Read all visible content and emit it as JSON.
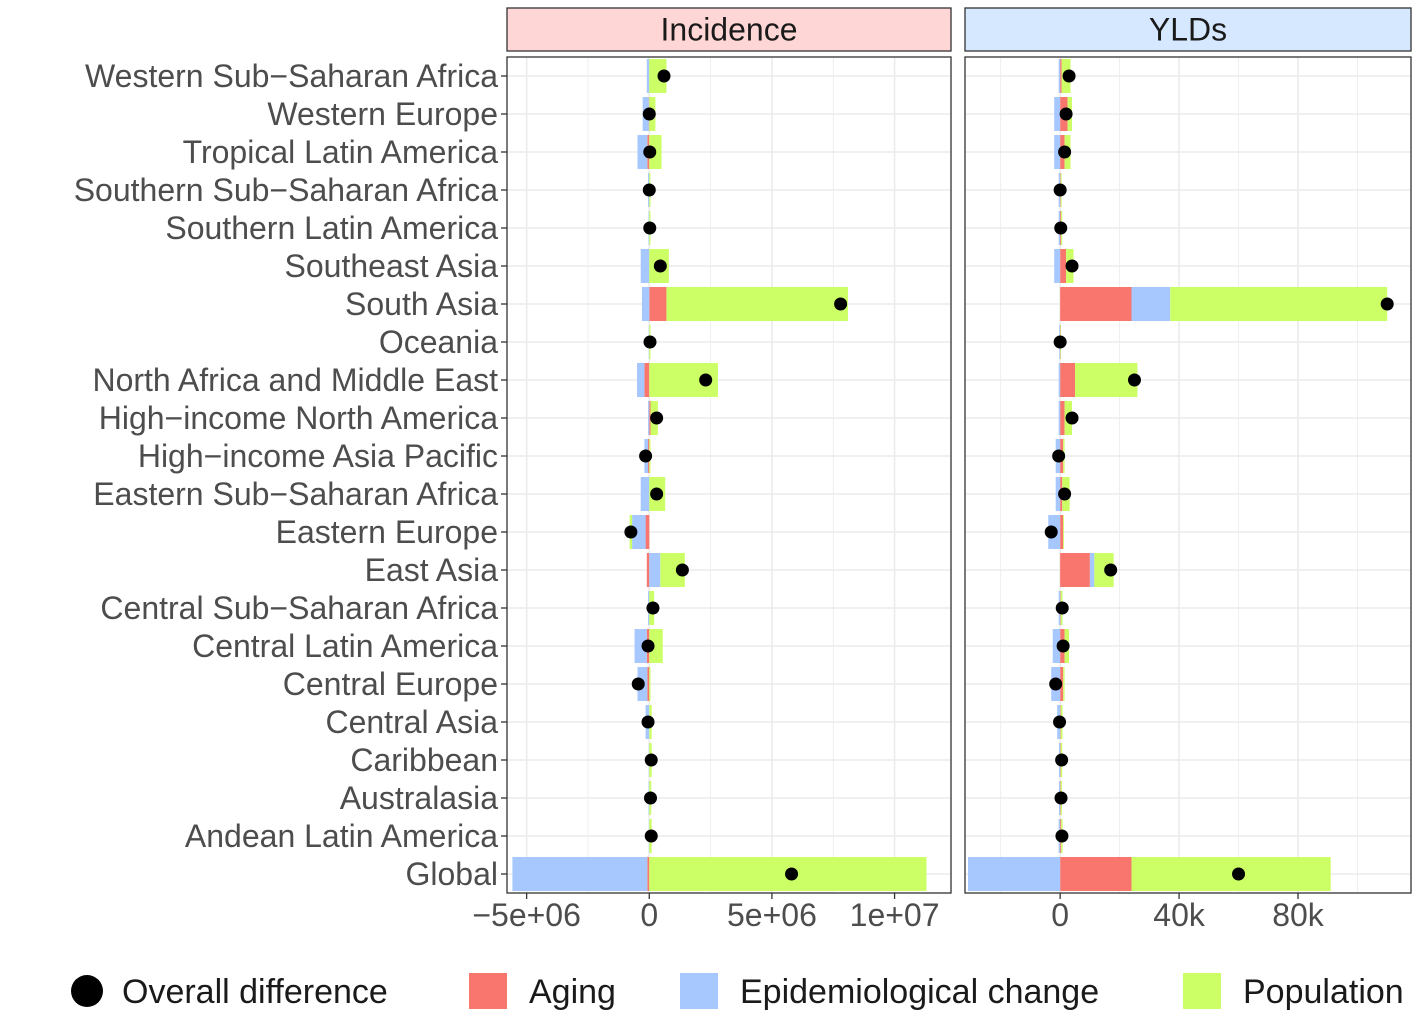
{
  "chart_data": {
    "type": "bar",
    "subtype": "stacked-horizontal-decomposition",
    "categories": [
      "Global",
      "Andean Latin America",
      "Australasia",
      "Caribbean",
      "Central Asia",
      "Central Europe",
      "Central Latin America",
      "Central Sub−Saharan Africa",
      "East Asia",
      "Eastern Europe",
      "Eastern Sub−Saharan Africa",
      "High−income Asia Pacific",
      "High−income North America",
      "North Africa and Middle East",
      "Oceania",
      "South Asia",
      "Southeast Asia",
      "Southern Latin America",
      "Southern Sub−Saharan Africa",
      "Tropical Latin America",
      "Western Europe",
      "Western Sub−Saharan Africa"
    ],
    "components": [
      {
        "key": "aging",
        "name": "Aging",
        "color": "#f8766d"
      },
      {
        "key": "epi",
        "name": "Epidemiological change",
        "color": "#a6c8ff"
      },
      {
        "key": "pop",
        "name": "Population",
        "color": "#ccff66"
      }
    ],
    "overall_name": "Overall difference",
    "legend": {
      "position": "bottom",
      "items": [
        "Overall difference",
        "Aging",
        "Epidemiological change",
        "Population"
      ]
    },
    "panels": [
      {
        "title": "Incidence",
        "strip_color": "#ffd6d6",
        "xlim": [
          -5800000,
          12300000
        ],
        "ticks": [
          {
            "value": -5000000,
            "label": "−5e+06"
          },
          {
            "value": 0,
            "label": "0"
          },
          {
            "value": 5000000,
            "label": "5e+06"
          },
          {
            "value": 10000000,
            "label": "1e+07"
          }
        ],
        "series": {
          "aging": [
            -80000,
            0,
            0,
            0,
            0,
            -80000,
            -100000,
            0,
            -100000,
            -150000,
            0,
            -50000,
            50000,
            -200000,
            0,
            700000,
            0,
            0,
            0,
            -80000,
            -20000,
            0
          ],
          "epi": [
            -5500000,
            -20000,
            -30000,
            -20000,
            -150000,
            -400000,
            -500000,
            -50000,
            450000,
            -550000,
            -350000,
            -150000,
            -50000,
            -300000,
            -20000,
            -300000,
            -350000,
            -30000,
            -50000,
            -400000,
            -250000,
            -100000
          ],
          "pop": [
            11300000,
            100000,
            80000,
            100000,
            100000,
            50000,
            550000,
            200000,
            1000000,
            -100000,
            650000,
            50000,
            300000,
            2800000,
            50000,
            7400000,
            800000,
            50000,
            50000,
            500000,
            250000,
            700000
          ]
        },
        "overall": [
          5800000,
          80000,
          50000,
          80000,
          -50000,
          -450000,
          -50000,
          150000,
          1350000,
          -750000,
          300000,
          -150000,
          300000,
          2300000,
          30000,
          7800000,
          450000,
          20000,
          0,
          20000,
          0,
          600000
        ]
      },
      {
        "title": "YLDs",
        "strip_color": "#d6e8ff",
        "xlim": [
          -32000,
          118000
        ],
        "ticks": [
          {
            "value": 0,
            "label": "0"
          },
          {
            "value": 40000,
            "label": "40k"
          },
          {
            "value": 80000,
            "label": "80k"
          }
        ],
        "series": {
          "aging": [
            24000,
            300,
            200,
            200,
            200,
            1000,
            1500,
            200,
            10000,
            1000,
            700,
            1000,
            1500,
            5000,
            100,
            24000,
            2000,
            300,
            200,
            1500,
            2500,
            500
          ],
          "epi": [
            -31000,
            -500,
            -400,
            -400,
            -1000,
            -3000,
            -2500,
            -500,
            1500,
            -4000,
            -1500,
            -1500,
            -500,
            -500,
            -300,
            13000,
            -2000,
            -500,
            -500,
            -2000,
            -2000,
            -500
          ],
          "pop": [
            67000,
            500,
            400,
            500,
            600,
            500,
            1500,
            600,
            6500,
            300,
            2500,
            500,
            2500,
            21000,
            200,
            73000,
            2500,
            400,
            300,
            2000,
            1500,
            3000
          ]
        },
        "overall": [
          60000,
          600,
          300,
          500,
          -200,
          -1500,
          1000,
          700,
          17000,
          -3000,
          1500,
          -500,
          4000,
          25000,
          0,
          110000,
          4000,
          200,
          0,
          1500,
          2000,
          3000
        ]
      }
    ]
  }
}
